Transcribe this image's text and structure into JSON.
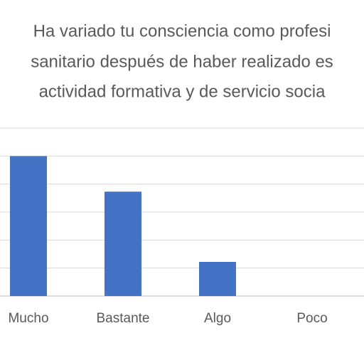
{
  "chart_data": {
    "type": "bar",
    "title_lines": [
      "Ha variado tu consciencia como profesi",
      "sanitario después de haber realizado es",
      "actividad formativa y de servicio socia"
    ],
    "categories": [
      "Mucho",
      "Bastante",
      "Algo",
      "Poco"
    ],
    "values": [
      5,
      3.73,
      1.22,
      0
    ],
    "color": "#4472c4",
    "ylim": [
      0,
      6
    ],
    "yticks": [
      0,
      1,
      2,
      3,
      4,
      5,
      6
    ],
    "grid": true
  }
}
